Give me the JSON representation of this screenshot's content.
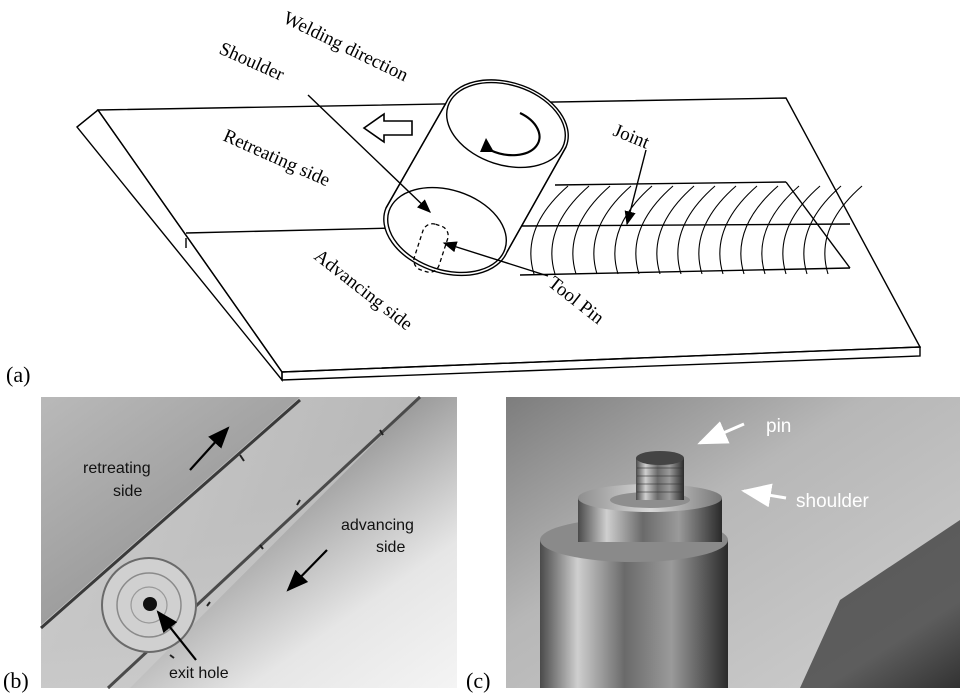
{
  "panel_a": {
    "label": "(a)",
    "welding_direction": "Welding direction",
    "shoulder": "Shoulder",
    "retreating_side": "Retreating side",
    "advancing_side": "Advancing side",
    "joint": "Joint",
    "tool_pin": "Tool Pin"
  },
  "panel_b": {
    "label": "(b)",
    "retreating_side": [
      "retreating",
      "side"
    ],
    "advancing_side": [
      "advancing",
      "side"
    ],
    "exit_hole": "exit hole"
  },
  "panel_c": {
    "label": "(c)",
    "pin": "pin",
    "shoulder": "shoulder"
  },
  "colors": {
    "line": "#000000",
    "photo_b_light": "#d9d9d9",
    "photo_b_dark": "#8a8a8a",
    "photo_c_bg": "#9e9e9e",
    "photo_c_dark": "#2a2a2a"
  }
}
